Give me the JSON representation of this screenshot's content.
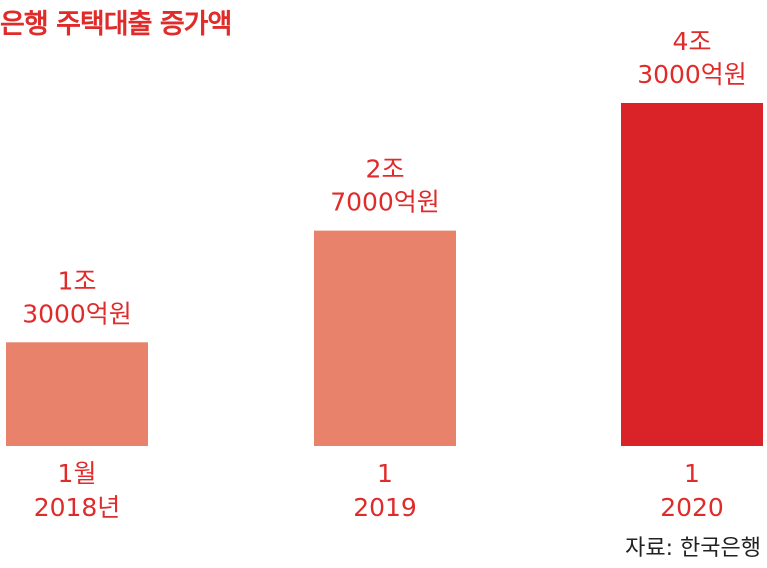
{
  "chart_data": {
    "type": "bar",
    "title": "은행 주택대출 증가액",
    "categories": [
      [
        "1월",
        "2018년"
      ],
      [
        "1",
        "2019"
      ],
      [
        "1",
        "2020"
      ]
    ],
    "values": [
      13000,
      27000,
      43000
    ],
    "value_labels": [
      [
        "1조",
        "3000억원"
      ],
      [
        "2조",
        "7000억원"
      ],
      [
        "4조",
        "3000억원"
      ]
    ],
    "unit": "억원",
    "bar_colors": [
      "#e8826a",
      "#e8826a",
      "#d92328"
    ],
    "label_color": "#e02b2b",
    "ylim": [
      0,
      43000
    ],
    "grid": false,
    "legend": "none"
  },
  "source": "자료: 한국은행"
}
